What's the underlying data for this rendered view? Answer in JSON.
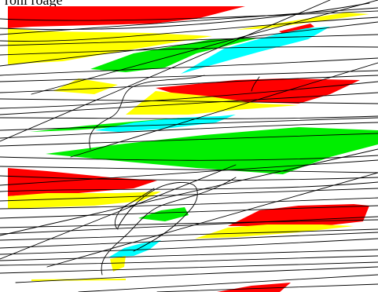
{
  "caption": "roni roage",
  "palette": {
    "background": "#ffffff",
    "red": "#ff0000",
    "yellow": "#ffff00",
    "green": "#00ee00",
    "cyan": "#00ffff",
    "line": "#000000"
  }
}
